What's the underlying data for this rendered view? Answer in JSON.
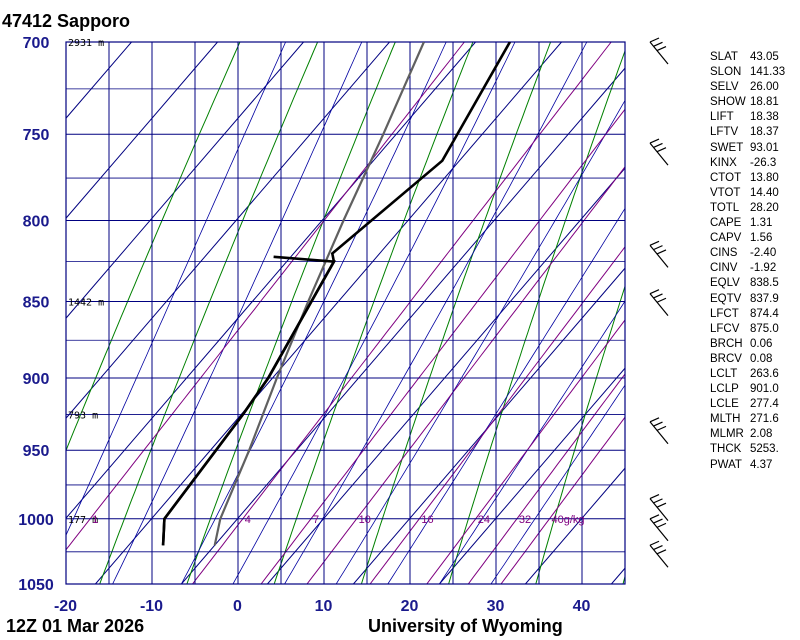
{
  "header": {
    "station": "47412  Sapporo",
    "date": "12Z 01 Mar 2026",
    "credit": "University of Wyoming"
  },
  "colors": {
    "axis": "#000080",
    "isotherm": "#000080",
    "dry_adiabat": "#008000",
    "moist_adiabat": "#0000a0",
    "mixing_ratio": "#800080",
    "temperature": "#000000",
    "dewpoint": "#000000",
    "parcel": "#606060"
  },
  "chart_data": {
    "type": "skew-t log-p sounding",
    "x_axis": {
      "ticks": [
        -20,
        -10,
        0,
        10,
        20,
        30,
        40
      ],
      "range": [
        -20,
        45
      ]
    },
    "y_axis": {
      "pressure_ticks": [
        700,
        750,
        800,
        850,
        900,
        950,
        1000,
        1050
      ],
      "range": [
        700,
        1050
      ]
    },
    "height_labels": [
      {
        "pressure": 700,
        "text": "2931 m"
      },
      {
        "pressure": 850,
        "text": "1442 m"
      },
      {
        "pressure": 925,
        "text": "793 m"
      },
      {
        "pressure": 1000,
        "text": "177 m"
      }
    ],
    "mixing_ratio_labels": [
      "1",
      "4",
      "7",
      "10",
      "16",
      "24",
      "32",
      "40g/kg"
    ],
    "mixing_ratio_values": [
      1,
      4,
      7,
      10,
      16,
      24,
      32,
      40
    ],
    "temperature": [
      {
        "p": 1020,
        "t": -6.0
      },
      {
        "p": 1000,
        "t": -8.5
      },
      {
        "p": 925,
        "t": -9.8
      },
      {
        "p": 900,
        "t": -10.5
      },
      {
        "p": 825,
        "t": -14.5
      },
      {
        "p": 820,
        "t": -15.5
      },
      {
        "p": 765,
        "t": -12.0
      },
      {
        "p": 700,
        "t": -16.0
      }
    ],
    "dewpoint": [
      {
        "p": 1020,
        "t": -6.0
      },
      {
        "p": 1000,
        "t": -8.5
      },
      {
        "p": 925,
        "t": -9.8
      },
      {
        "p": 900,
        "t": -10.5
      },
      {
        "p": 825,
        "t": -14.5
      },
      {
        "p": 822,
        "t": -22.0
      }
    ],
    "parcel": [
      {
        "p": 1020,
        "t": 0.0
      },
      {
        "p": 1000,
        "t": -2.0
      },
      {
        "p": 950,
        "t": -5.5
      },
      {
        "p": 900,
        "t": -9.5
      },
      {
        "p": 850,
        "t": -13.5
      },
      {
        "p": 800,
        "t": -17.5
      },
      {
        "p": 750,
        "t": -21.5
      },
      {
        "p": 700,
        "t": -26.0
      }
    ],
    "wind_barbs_pressure": [
      700,
      755,
      815,
      845,
      930,
      985,
      1000,
      1020
    ]
  },
  "indices": [
    {
      "name": "SLAT",
      "value": "43.05"
    },
    {
      "name": "SLON",
      "value": "141.33"
    },
    {
      "name": "SELV",
      "value": "26.00"
    },
    {
      "name": "SHOW",
      "value": "18.81"
    },
    {
      "name": "LIFT",
      "value": "18.38"
    },
    {
      "name": "LFTV",
      "value": "18.37"
    },
    {
      "name": "SWET",
      "value": "93.01"
    },
    {
      "name": "KINX",
      "value": "-26.3"
    },
    {
      "name": "CTOT",
      "value": "13.80"
    },
    {
      "name": "VTOT",
      "value": "14.40"
    },
    {
      "name": "TOTL",
      "value": "28.20"
    },
    {
      "name": "CAPE",
      "value": "1.31"
    },
    {
      "name": "CAPV",
      "value": "1.56"
    },
    {
      "name": "CINS",
      "value": "-2.40"
    },
    {
      "name": "CINV",
      "value": "-1.92"
    },
    {
      "name": "EQLV",
      "value": "838.5"
    },
    {
      "name": "EQTV",
      "value": "837.9"
    },
    {
      "name": "LFCT",
      "value": "874.4"
    },
    {
      "name": "LFCV",
      "value": "875.0"
    },
    {
      "name": "BRCH",
      "value": "0.06"
    },
    {
      "name": "BRCV",
      "value": "0.08"
    },
    {
      "name": "LCLT",
      "value": "263.6"
    },
    {
      "name": "LCLP",
      "value": "901.0"
    },
    {
      "name": "LCLE",
      "value": "277.4"
    },
    {
      "name": "MLTH",
      "value": "271.6"
    },
    {
      "name": "MLMR",
      "value": "2.08"
    },
    {
      "name": "THCK",
      "value": "5253."
    },
    {
      "name": "PWAT",
      "value": "4.37"
    }
  ]
}
